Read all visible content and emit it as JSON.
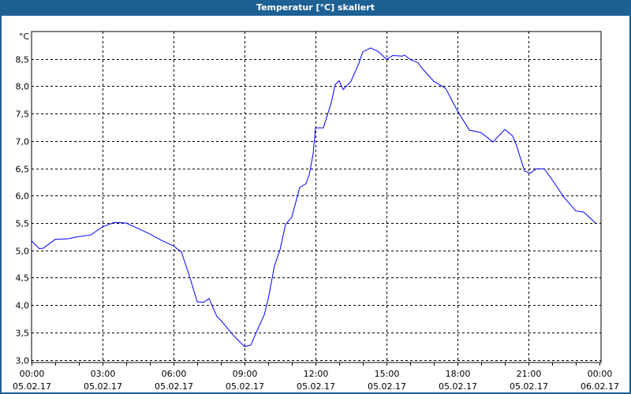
{
  "window": {
    "title": "Temperatur [°C] skaliert",
    "title_bar_color": "#1d6094"
  },
  "chart_data": {
    "type": "line",
    "title": "Temperatur [°C] skaliert",
    "ylabel": "°C",
    "xlabel": "",
    "ylim": [
      2.95,
      9.0
    ],
    "xlim": [
      "05.02.17 00:00",
      "06.02.17 00:00"
    ],
    "grid": true,
    "line_color": "#0000ff",
    "yticks": [
      "3,0",
      "3,5",
      "4,0",
      "4,5",
      "5,0",
      "5,5",
      "6,0",
      "6,5",
      "7,0",
      "7,5",
      "8,0",
      "8,5"
    ],
    "ytick_values": [
      3.0,
      3.5,
      4.0,
      4.5,
      5.0,
      5.5,
      6.0,
      6.5,
      7.0,
      7.5,
      8.0,
      8.5
    ],
    "xticks": [
      {
        "time": "00:00",
        "date": "05.02.17"
      },
      {
        "time": "03:00",
        "date": "05.02.17"
      },
      {
        "time": "06:00",
        "date": "05.02.17"
      },
      {
        "time": "09:00",
        "date": "05.02.17"
      },
      {
        "time": "12:00",
        "date": "05.02.17"
      },
      {
        "time": "15:00",
        "date": "05.02.17"
      },
      {
        "time": "18:00",
        "date": "05.02.17"
      },
      {
        "time": "21:00",
        "date": "05.02.17"
      },
      {
        "time": "00:00",
        "date": "06.02.17"
      }
    ],
    "series": [
      {
        "x": [
          "00:00",
          "00:20",
          "00:30",
          "01:00",
          "01:30",
          "02:00",
          "02:30",
          "03:00",
          "03:30",
          "04:00",
          "04:30",
          "05:00",
          "05:30",
          "06:00",
          "06:20",
          "06:40",
          "07:00",
          "07:16",
          "07:30",
          "07:50",
          "08:00",
          "08:30",
          "09:00",
          "09:16",
          "09:30",
          "09:50",
          "10:00",
          "10:16",
          "10:30",
          "10:44",
          "11:00",
          "11:20",
          "11:36",
          "11:44",
          "11:54",
          "12:00",
          "12:20",
          "12:40",
          "12:50",
          "13:00",
          "13:10",
          "13:30",
          "13:50",
          "14:00",
          "14:20",
          "14:40",
          "15:00",
          "15:16",
          "15:40",
          "15:46",
          "16:00",
          "16:20",
          "16:30",
          "17:00",
          "17:30",
          "18:00",
          "18:30",
          "19:00",
          "19:30",
          "20:00",
          "20:20",
          "20:30",
          "20:50",
          "21:04",
          "21:20",
          "21:40",
          "22:00",
          "22:30",
          "23:00",
          "23:20",
          "23:50"
        ],
        "y": [
          5.17,
          5.03,
          5.04,
          5.2,
          5.21,
          5.25,
          5.28,
          5.43,
          5.51,
          5.5,
          5.4,
          5.3,
          5.18,
          5.08,
          4.97,
          4.54,
          4.06,
          4.05,
          4.12,
          3.79,
          3.72,
          3.46,
          3.24,
          3.27,
          3.5,
          3.82,
          4.11,
          4.72,
          5.01,
          5.47,
          5.61,
          6.15,
          6.22,
          6.38,
          6.76,
          7.24,
          7.24,
          7.7,
          8.03,
          8.1,
          7.94,
          8.09,
          8.42,
          8.63,
          8.7,
          8.63,
          8.49,
          8.56,
          8.55,
          8.57,
          8.49,
          8.43,
          8.33,
          8.09,
          7.96,
          7.55,
          7.2,
          7.15,
          6.98,
          7.21,
          7.09,
          6.91,
          6.45,
          6.41,
          6.49,
          6.49,
          6.29,
          5.97,
          5.72,
          5.7,
          5.5
        ]
      }
    ]
  }
}
